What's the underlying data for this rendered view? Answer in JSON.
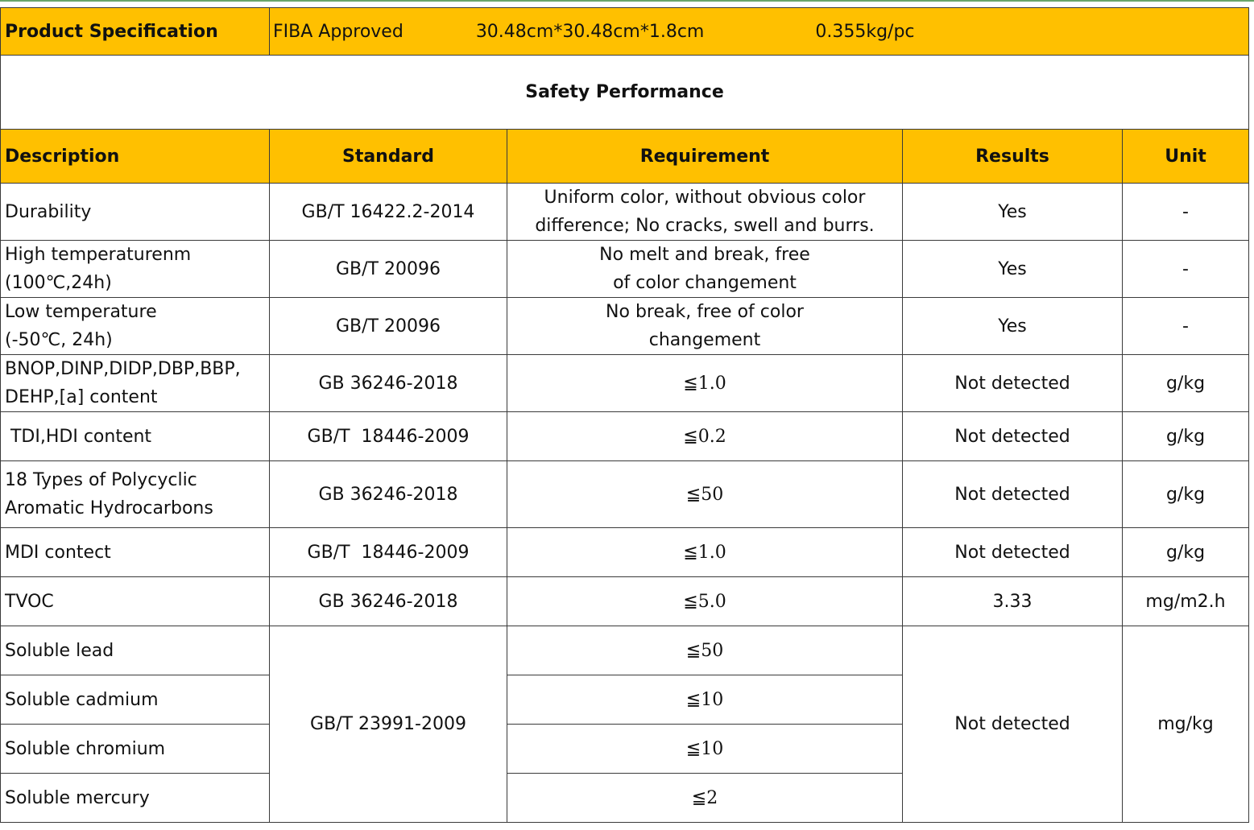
{
  "spec": {
    "label": "Product Specification",
    "approval": "FIBA  Approved",
    "size": "30.48cm*30.48cm*1.8cm",
    "weight": "0.355kg/pc"
  },
  "title": "Safety Performance",
  "headers": {
    "description": "Description",
    "standard": "Standard",
    "requirement": "Requirement",
    "results": "Results",
    "unit": "Unit"
  },
  "rows": [
    {
      "description": [
        "Durability"
      ],
      "standard": "GB/T 16422.2-2014",
      "requirement": [
        "Uniform color, without obvious color",
        "difference; No cracks, swell and burrs."
      ],
      "results": "Yes",
      "unit": "-"
    },
    {
      "description": [
        "High temperaturenm",
        "(100℃,24h)"
      ],
      "standard": "GB/T 20096",
      "requirement": [
        "No melt and break, free",
        "of color changement"
      ],
      "results": "Yes",
      "unit": "-"
    },
    {
      "description": [
        "Low temperature",
        "(-50℃, 24h)"
      ],
      "standard": "GB/T 20096",
      "requirement": [
        "No break, free of color",
        "changement"
      ],
      "results": "Yes",
      "unit": "-"
    },
    {
      "description": [
        "BNOP,DINP,DIDP,DBP,BBP,",
        "DEHP,[a] content"
      ],
      "standard": "GB 36246-2018",
      "requirement": [
        "≦1.0"
      ],
      "results": "Not detected",
      "unit": "g/kg"
    },
    {
      "description": [
        " TDI,HDI content"
      ],
      "standard": "GB/T  18446-2009",
      "requirement": [
        "≦0.2"
      ],
      "results": "Not detected",
      "unit": "g/kg"
    },
    {
      "description": [
        "18 Types of Polycyclic",
        "Aromatic Hydrocarbons"
      ],
      "standard": "GB 36246-2018",
      "requirement": [
        "≦50"
      ],
      "results": "Not detected",
      "unit": "g/kg"
    },
    {
      "description": [
        "MDI contect"
      ],
      "standard": "GB/T  18446-2009",
      "requirement": [
        "≦1.0"
      ],
      "results": "Not detected",
      "unit": "g/kg"
    },
    {
      "description": [
        "TVOC"
      ],
      "standard": "GB 36246-2018",
      "requirement": [
        "≦5.0"
      ],
      "results": "3.33",
      "unit": "mg/m2.h"
    }
  ],
  "soluble": {
    "standard": "GB/T 23991-2009",
    "results": "Not detected",
    "unit": "mg/kg",
    "items": [
      {
        "description": "Soluble lead",
        "requirement": "≦50"
      },
      {
        "description": "Soluble cadmium",
        "requirement": "≦10"
      },
      {
        "description": "Soluble chromium",
        "requirement": "≦10"
      },
      {
        "description": "Soluble mercury",
        "requirement": "≦2"
      }
    ]
  }
}
